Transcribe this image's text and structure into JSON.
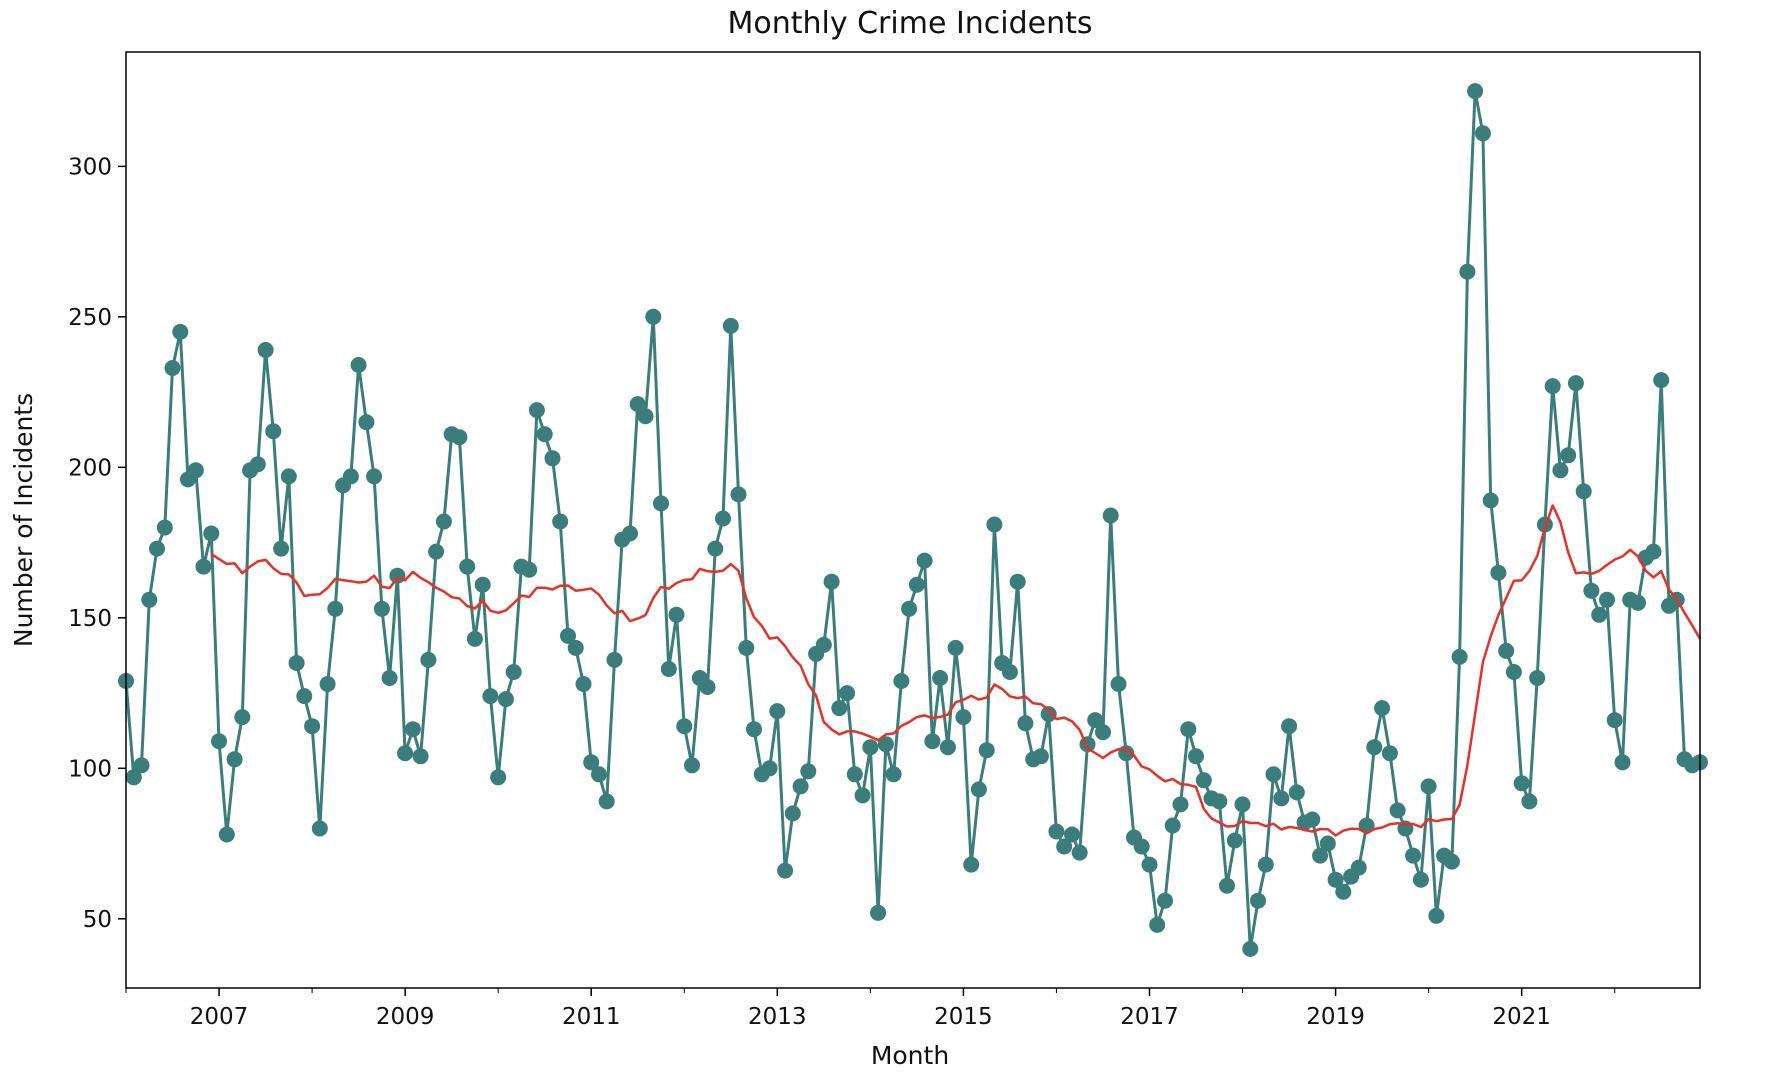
{
  "chart_data": {
    "type": "line",
    "title": "Monthly Crime Incidents",
    "xlabel": "Month",
    "ylabel": "Number of Incidents",
    "x_start": "2006-01",
    "x_end": "2022-12",
    "xlim": [
      "2006-01",
      "2022-12"
    ],
    "ylim": [
      27,
      338
    ],
    "x_major_ticks": [
      "2007",
      "2009",
      "2011",
      "2013",
      "2015",
      "2017",
      "2019",
      "2021"
    ],
    "y_ticks": [
      50,
      100,
      150,
      200,
      250,
      300
    ],
    "grid": false,
    "series": [
      {
        "kind": "monthly-incidents",
        "color": "#3a7d7b",
        "marker": "circle",
        "values": [
          129,
          97,
          101,
          156,
          173,
          180,
          233,
          245,
          196,
          199,
          167,
          178,
          109,
          78,
          103,
          117,
          199,
          201,
          239,
          212,
          173,
          197,
          135,
          124,
          114,
          80,
          128,
          153,
          194,
          197,
          234,
          215,
          197,
          153,
          130,
          164,
          105,
          113,
          104,
          136,
          172,
          182,
          211,
          210,
          167,
          143,
          161,
          124,
          97,
          123,
          132,
          167,
          166,
          219,
          211,
          203,
          182,
          144,
          140,
          128,
          102,
          98,
          89,
          136,
          176,
          178,
          221,
          217,
          250,
          188,
          133,
          151,
          114,
          101,
          130,
          127,
          173,
          183,
          247,
          191,
          140,
          113,
          98,
          100,
          119,
          66,
          85,
          94,
          99,
          138,
          141,
          162,
          120,
          125,
          98,
          91,
          107,
          52,
          108,
          98,
          129,
          153,
          161,
          169,
          109,
          130,
          107,
          140,
          117,
          68,
          93,
          106,
          181,
          135,
          132,
          162,
          115,
          103,
          104,
          118,
          79,
          74,
          78,
          72,
          108,
          116,
          112,
          184,
          128,
          105,
          77,
          74,
          68,
          48,
          56,
          81,
          88,
          113,
          104,
          96,
          90,
          89,
          61,
          76,
          88,
          40,
          56,
          68,
          98,
          90,
          114,
          92,
          82,
          83,
          71,
          75,
          63,
          59,
          64,
          67,
          81,
          107,
          120,
          105,
          86,
          80,
          71,
          63,
          94,
          51,
          71,
          69,
          137,
          265,
          325,
          311,
          189,
          165,
          139,
          132,
          95,
          89,
          130,
          181,
          227,
          199,
          204,
          228,
          192,
          159,
          151,
          156,
          116,
          102,
          156,
          155,
          170,
          172,
          229,
          154,
          156,
          103,
          101,
          102
        ]
      },
      {
        "kind": "12-month-rolling-mean",
        "color": "#e8302a",
        "marker": "none",
        "window": 12
      }
    ]
  }
}
